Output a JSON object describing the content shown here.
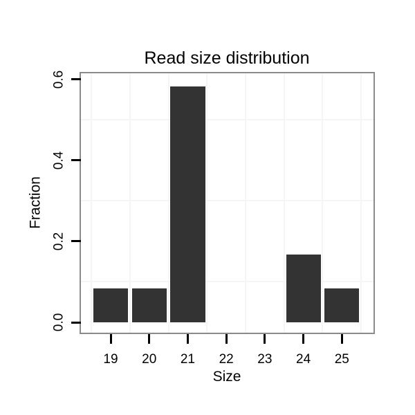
{
  "chart_data": {
    "type": "bar",
    "title": "Read size distribution",
    "xlabel": "Size",
    "ylabel": "Fraction",
    "categories": [
      19,
      20,
      21,
      22,
      23,
      24,
      25
    ],
    "values": [
      0.0833,
      0.0833,
      0.5833,
      0,
      0,
      0.1667,
      0.0833
    ],
    "bar_width_fraction": 0.9,
    "xlim": [
      18.228,
      25.82
    ],
    "ylim": [
      -0.0256,
      0.615
    ],
    "x_ticks": [
      {
        "value": 19,
        "label": "19"
      },
      {
        "value": 20,
        "label": "20"
      },
      {
        "value": 21,
        "label": "21"
      },
      {
        "value": 22,
        "label": "22"
      },
      {
        "value": 23,
        "label": "23"
      },
      {
        "value": 24,
        "label": "24"
      },
      {
        "value": 25,
        "label": "25"
      }
    ],
    "y_ticks": [
      {
        "value": 0.0,
        "label": "0.0"
      },
      {
        "value": 0.2,
        "label": "0.2"
      },
      {
        "value": 0.4,
        "label": "0.4"
      },
      {
        "value": 0.6,
        "label": "0.6"
      }
    ],
    "x_minor_gridlines": [
      18.5,
      19.5,
      20.5,
      21.5,
      22.5,
      23.5,
      24.5,
      25.5
    ],
    "y_minor_gridlines": [
      0.1,
      0.3,
      0.5
    ],
    "major_gridlines_visible": false,
    "grid": "minor-only",
    "legend_position": "none",
    "y_tick_label_rotation_deg": -90,
    "colors": {
      "bar_fill": "#333333",
      "panel_border": "#8A8A8A",
      "panel_background": "#FFFFFF",
      "figure_background": "#FFFFFF",
      "gridline": "#F5F5F5",
      "tick_mark": "#000000",
      "text": "#000000"
    }
  }
}
